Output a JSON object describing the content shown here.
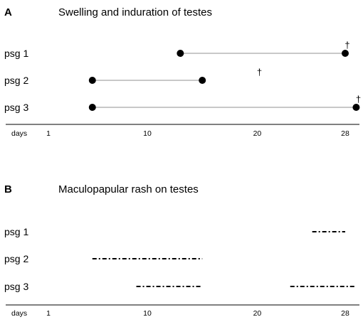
{
  "chart_data": [
    {
      "type": "timeline",
      "panel": "A",
      "title": "Swelling and induration of testes",
      "xlabel": "days",
      "x_ticks": [
        1,
        10,
        20,
        28
      ],
      "xlim": [
        1,
        28
      ],
      "rows": [
        {
          "label": "psg 1",
          "start": 13,
          "end": 28,
          "style": "line-dots",
          "death_day": 28
        },
        {
          "label": "psg 2",
          "start": 5,
          "end": 15,
          "style": "line-dots",
          "death_day": 20
        },
        {
          "label": "psg 3",
          "start": 5,
          "end": 29,
          "style": "line-dots",
          "death_day": 29
        }
      ],
      "death_marker": "†"
    },
    {
      "type": "timeline",
      "panel": "B",
      "title": "Maculopapular rash on testes",
      "xlabel": "days",
      "x_ticks": [
        1,
        10,
        20,
        28
      ],
      "xlim": [
        1,
        28
      ],
      "rows": [
        {
          "label": "psg 1",
          "segments": [
            [
              25,
              28
            ]
          ],
          "style": "dash-dot"
        },
        {
          "label": "psg 2",
          "segments": [
            [
              5,
              15
            ]
          ],
          "style": "dash-dot"
        },
        {
          "label": "psg 3",
          "segments": [
            [
              9,
              15
            ],
            [
              23,
              29
            ]
          ],
          "style": "dash-dot"
        }
      ]
    }
  ]
}
